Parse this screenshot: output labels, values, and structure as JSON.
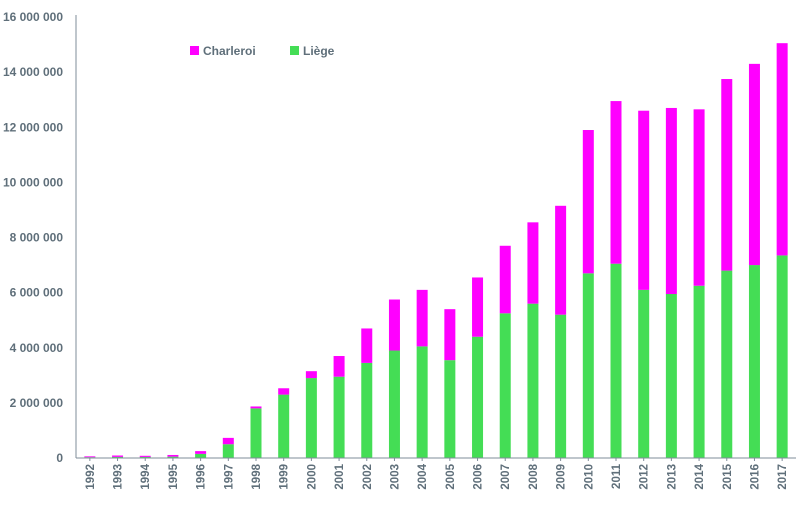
{
  "colors": {
    "charleroi": "#ff00ff",
    "liege": "#44dd55",
    "axis": "#7f8c99",
    "text": "#5f6f7a"
  },
  "chart_data": {
    "type": "bar",
    "stacked": true,
    "title": "",
    "xlabel": "",
    "ylabel": "",
    "ylim": [
      0,
      16000000
    ],
    "yticks": [
      0,
      2000000,
      4000000,
      6000000,
      8000000,
      10000000,
      12000000,
      14000000,
      16000000
    ],
    "ytick_labels": [
      "0",
      "2 000 000",
      "4 000 000",
      "6 000 000",
      "8 000 000",
      "10 000 000",
      "12 000 000",
      "14 000 000",
      "16 000 000"
    ],
    "grid": false,
    "legend_position": "top-left",
    "categories": [
      "1992",
      "1993",
      "1994",
      "1995",
      "1996",
      "1997",
      "1998",
      "1999",
      "2000",
      "2001",
      "2002",
      "2003",
      "2004",
      "2005",
      "2006",
      "2007",
      "2008",
      "2009",
      "2010",
      "2011",
      "2012",
      "2013",
      "2014",
      "2015",
      "2016",
      "2017"
    ],
    "series": [
      {
        "name": "Liège",
        "color": "#44dd55",
        "values": [
          30000,
          40000,
          40000,
          50000,
          150000,
          500000,
          1800000,
          2300000,
          2900000,
          2950000,
          3450000,
          3900000,
          4050000,
          3550000,
          4400000,
          5250000,
          5600000,
          5200000,
          6700000,
          7050000,
          6100000,
          5950000,
          6250000,
          6800000,
          7000000,
          7350000
        ]
      },
      {
        "name": "Charleroi",
        "color": "#ff00ff",
        "values": [
          30000,
          50000,
          40000,
          60000,
          100000,
          230000,
          70000,
          230000,
          250000,
          750000,
          1250000,
          1850000,
          2050000,
          1850000,
          2150000,
          2450000,
          2950000,
          3950000,
          5200000,
          5900000,
          6500000,
          6750000,
          6400000,
          6950000,
          7300000,
          7700000
        ]
      }
    ]
  }
}
